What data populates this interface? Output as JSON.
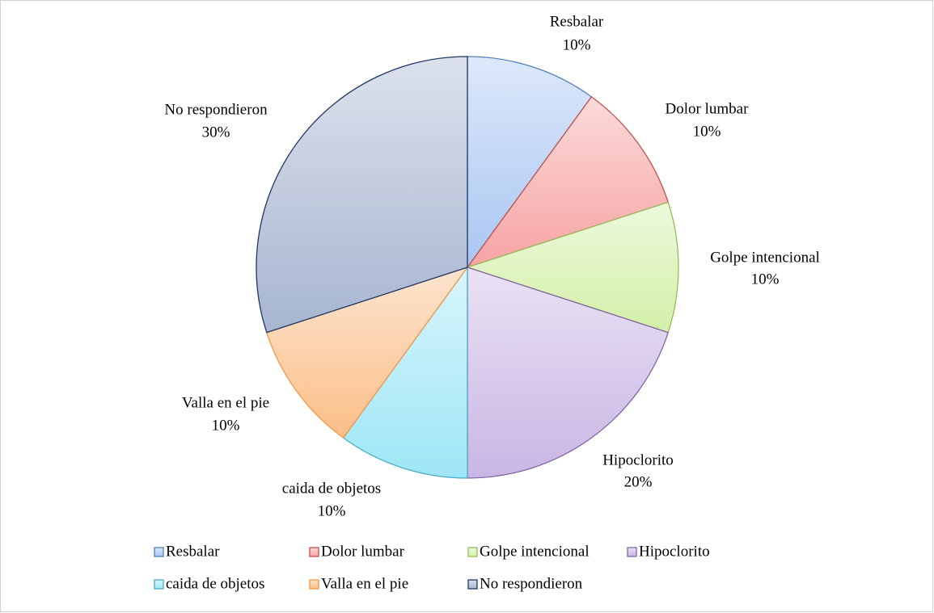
{
  "chart_data": {
    "type": "pie",
    "categories": [
      "Resbalar",
      "Dolor lumbar",
      "Golpe intencional",
      "Hipoclorito",
      "caida de objetos",
      "Valla en el pie",
      "No respondieron"
    ],
    "values": [
      10,
      10,
      10,
      20,
      10,
      10,
      30
    ],
    "value_labels": [
      "10%",
      "10%",
      "10%",
      "20%",
      "10%",
      "10%",
      "30%"
    ],
    "colors": [
      "#a9c6f2",
      "#f7a3a3",
      "#d3f0a8",
      "#c9b6e4",
      "#9ee6f6",
      "#fbbe88",
      "#a7b5d0"
    ],
    "edge_colors": [
      "#4f81bd",
      "#c0504d",
      "#9bbb59",
      "#8064a2",
      "#4bacc6",
      "#f79646",
      "#1f3864"
    ],
    "legend": "bottom"
  }
}
